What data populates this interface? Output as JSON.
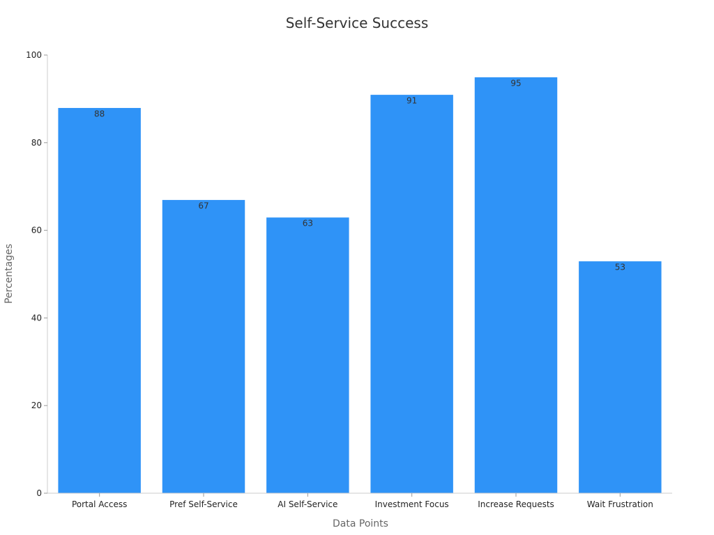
{
  "chart_data": {
    "type": "bar",
    "title": "Self-Service Success",
    "xlabel": "Data Points",
    "ylabel": "Percentages",
    "categories": [
      "Portal Access",
      "Pref Self-Service",
      "AI Self-Service",
      "Investment Focus",
      "Increase Requests",
      "Wait Frustration"
    ],
    "values": [
      88,
      67,
      63,
      91,
      95,
      53
    ],
    "ylim": [
      0,
      100
    ],
    "yticks": [
      0,
      20,
      40,
      60,
      80,
      100
    ],
    "bar_color": "#2f93f7",
    "grid": false,
    "legend": false
  }
}
